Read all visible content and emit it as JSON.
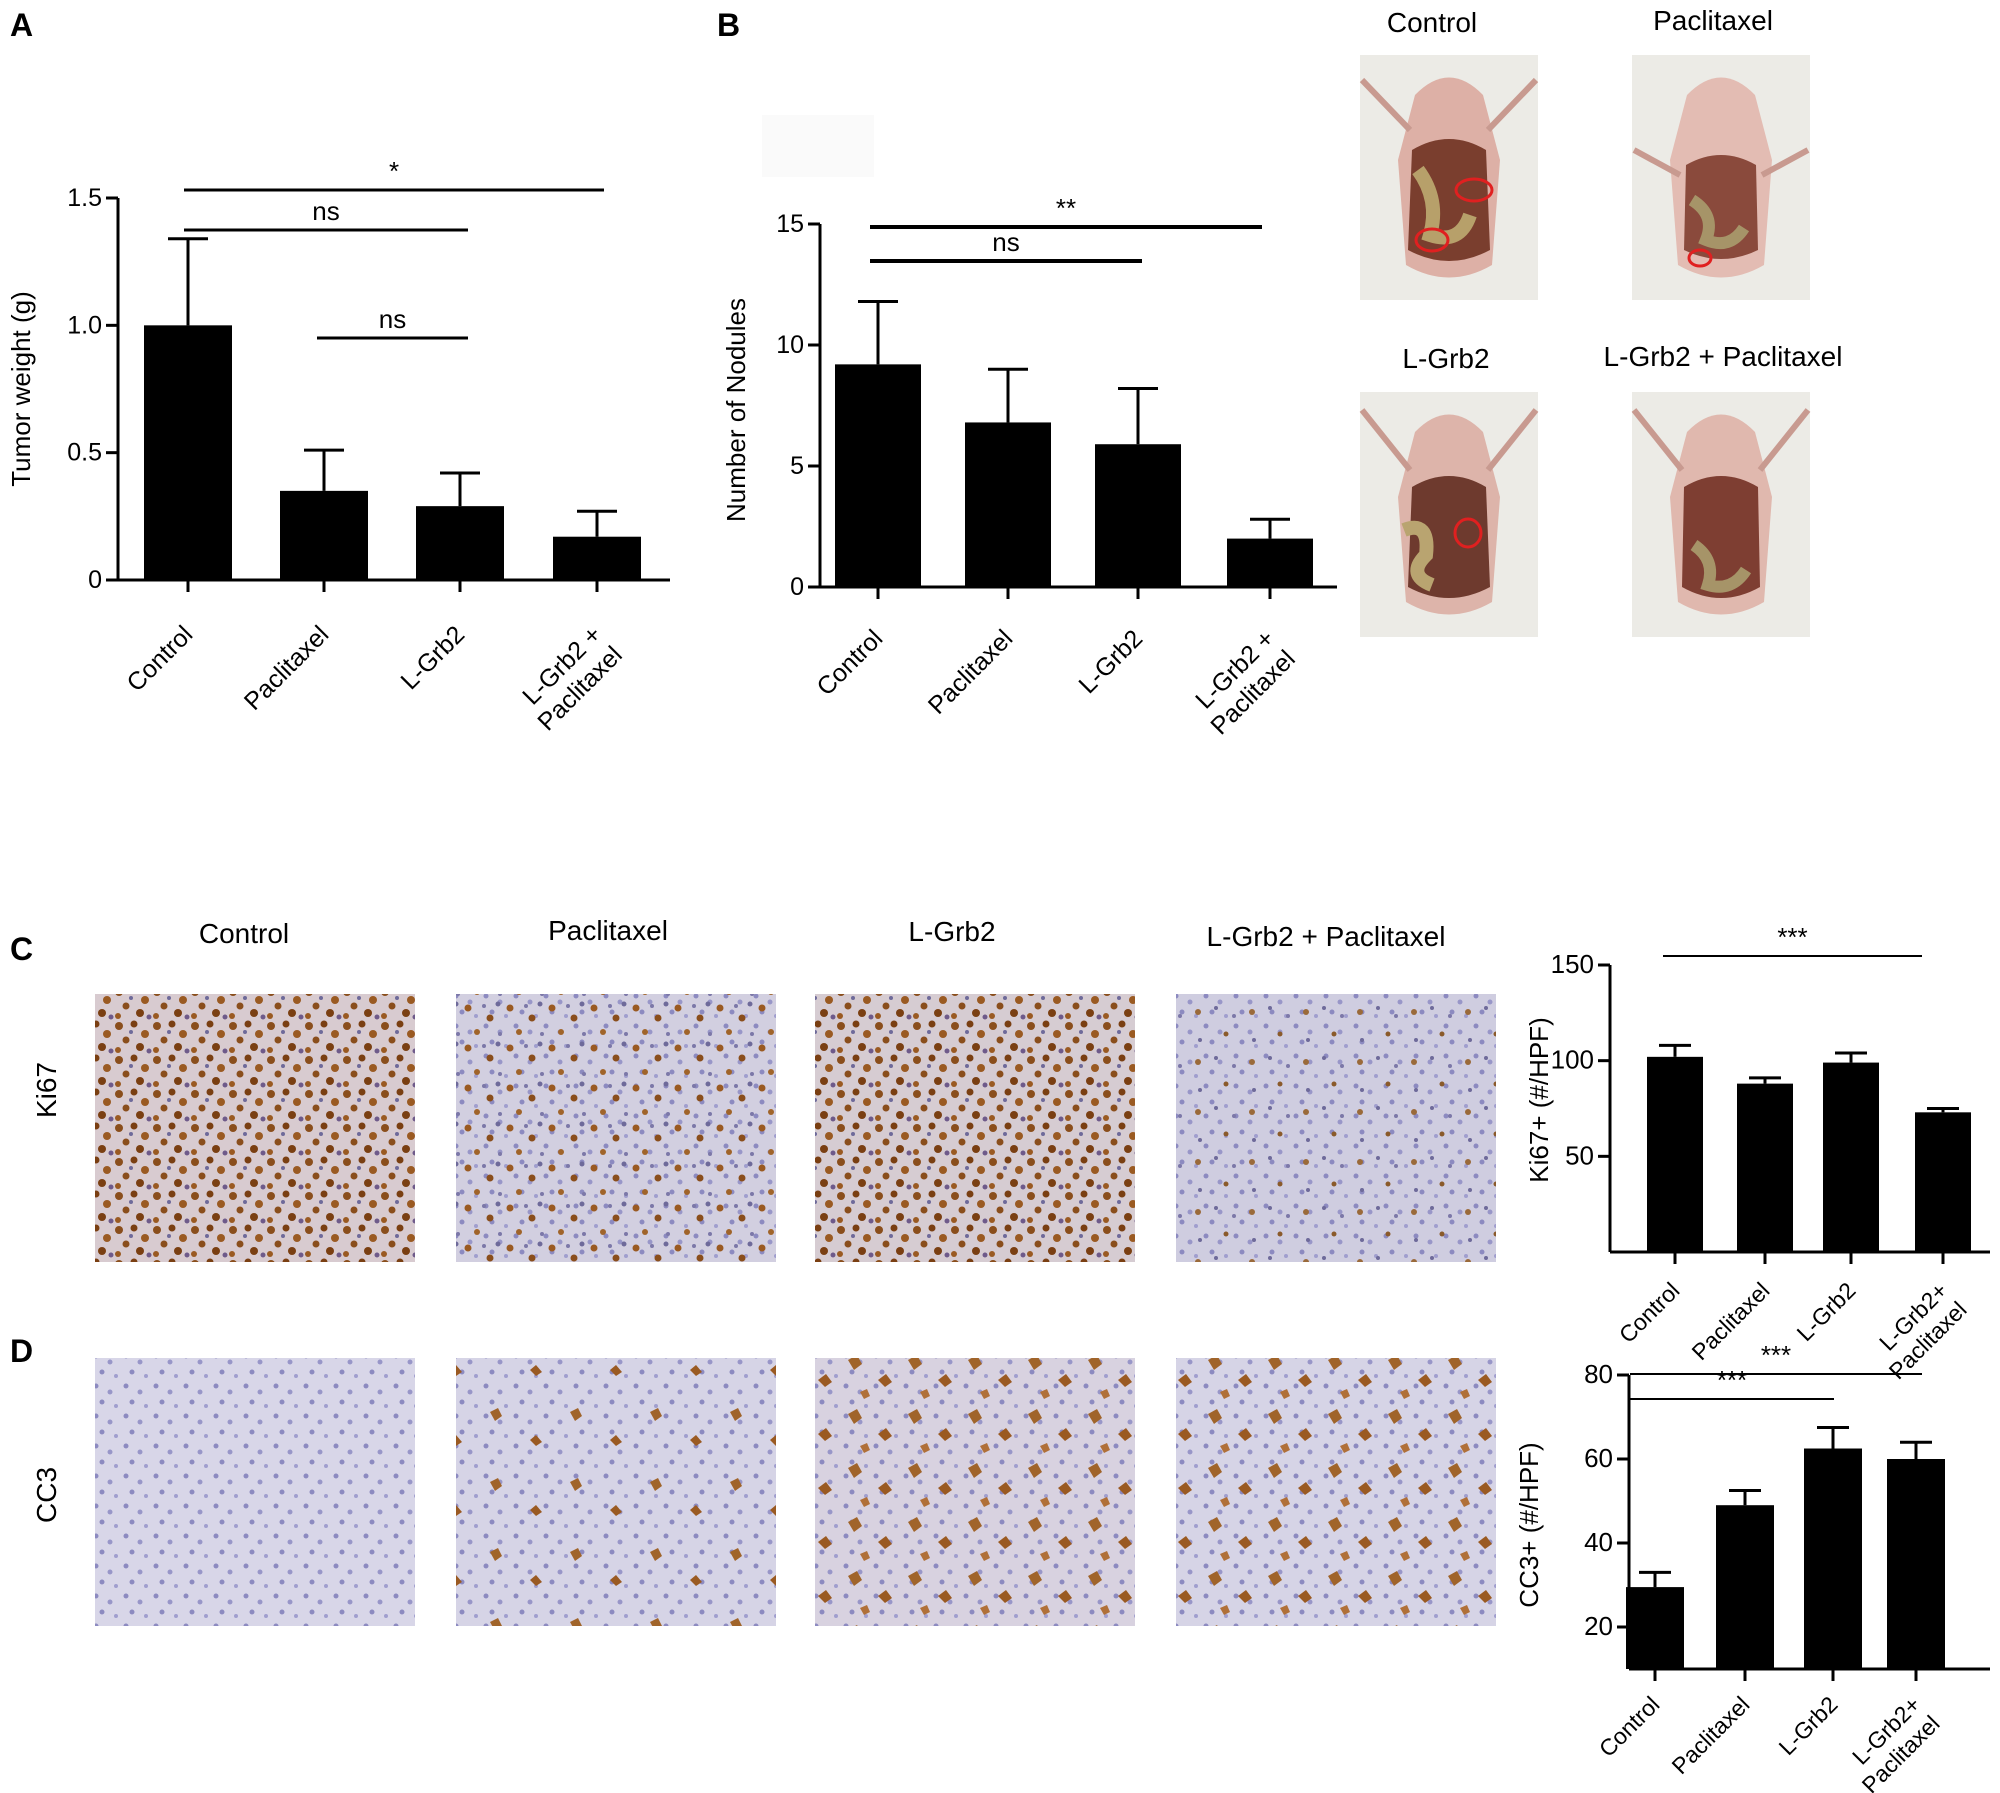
{
  "panels": {
    "A": "A",
    "B": "B",
    "C": "C",
    "D": "D"
  },
  "colors": {
    "bar": "#000000",
    "circle": "#e02020",
    "tissue_bg": "#d6d4e4",
    "stain_brown": "#8a4e1c"
  },
  "photos": {
    "mice": [
      "Control",
      "Paclitaxel",
      "L-Grb2",
      "L-Grb2 + Paclitaxel"
    ],
    "histology_columns": [
      "Control",
      "Paclitaxel",
      "L-Grb2",
      "L-Grb2 + Paclitaxel"
    ],
    "row_labels": [
      "Ki67",
      "CC3"
    ]
  },
  "chart_data": [
    {
      "panel": "A",
      "type": "bar",
      "categories": [
        "Control",
        "Paclitaxel",
        "L-Grb2",
        "L-Grb2 + Paclitaxel"
      ],
      "values": [
        1.0,
        0.35,
        0.29,
        0.17
      ],
      "errors": [
        0.34,
        0.16,
        0.13,
        0.1
      ],
      "ylabel": "Tumor weight (g)",
      "ylim": [
        0,
        1.5
      ],
      "yticks": [
        {
          "v": 0,
          "t": "0"
        },
        {
          "v": 0.5,
          "t": "0.5"
        },
        {
          "v": 1.0,
          "t": "1.0"
        },
        {
          "v": 1.5,
          "t": "1.5"
        }
      ],
      "significance": [
        {
          "from": 0,
          "to": 3,
          "label": "*"
        },
        {
          "from": 0,
          "to": 2,
          "label": "ns"
        },
        {
          "from": 1,
          "to": 2,
          "label": "ns"
        }
      ]
    },
    {
      "panel": "B",
      "type": "bar",
      "categories": [
        "Control",
        "Paclitaxel",
        "L-Grb2",
        "L-Grb2 + Paclitaxel"
      ],
      "values": [
        9.2,
        6.8,
        5.9,
        2.0
      ],
      "errors": [
        2.6,
        2.2,
        2.3,
        0.8
      ],
      "ylabel": "Number of Nodules",
      "ylim": [
        0,
        15
      ],
      "yticks": [
        {
          "v": 0,
          "t": "0"
        },
        {
          "v": 5,
          "t": "5"
        },
        {
          "v": 10,
          "t": "10"
        },
        {
          "v": 15,
          "t": "15"
        }
      ],
      "significance": [
        {
          "from": 0,
          "to": 3,
          "label": "**"
        },
        {
          "from": 0,
          "to": 2,
          "label": "ns"
        }
      ]
    },
    {
      "panel": "C",
      "type": "bar",
      "categories": [
        "Control",
        "Paclitaxel",
        "L-Grb2",
        "L-Grb2+ Paclitaxel"
      ],
      "values": [
        102,
        88,
        99,
        73
      ],
      "errors": [
        6,
        3,
        5,
        2
      ],
      "ylabel": "Ki67+ (#/HPF)",
      "ylim": [
        0,
        150
      ],
      "yticks": [
        {
          "v": 50,
          "t": "50"
        },
        {
          "v": 100,
          "t": "100"
        },
        {
          "v": 150,
          "t": "150"
        }
      ],
      "significance": [
        {
          "from": 0,
          "to": 3,
          "label": "***"
        }
      ]
    },
    {
      "panel": "D",
      "type": "bar",
      "categories": [
        "Control",
        "Paclitaxel",
        "L-Grb2",
        "L-Grb2+ Paclitaxel"
      ],
      "values": [
        29.5,
        49,
        62.5,
        60
      ],
      "errors": [
        3.5,
        3.5,
        5,
        4
      ],
      "ylabel": "CC3+ (#/HPF)",
      "ylim": [
        10,
        80
      ],
      "yticks": [
        {
          "v": 20,
          "t": "20"
        },
        {
          "v": 40,
          "t": "40"
        },
        {
          "v": 60,
          "t": "60"
        },
        {
          "v": 80,
          "t": "80"
        }
      ],
      "significance": [
        {
          "from": 0,
          "to": 3,
          "label": "***"
        },
        {
          "from": 0,
          "to": 2,
          "label": "***"
        }
      ]
    }
  ]
}
